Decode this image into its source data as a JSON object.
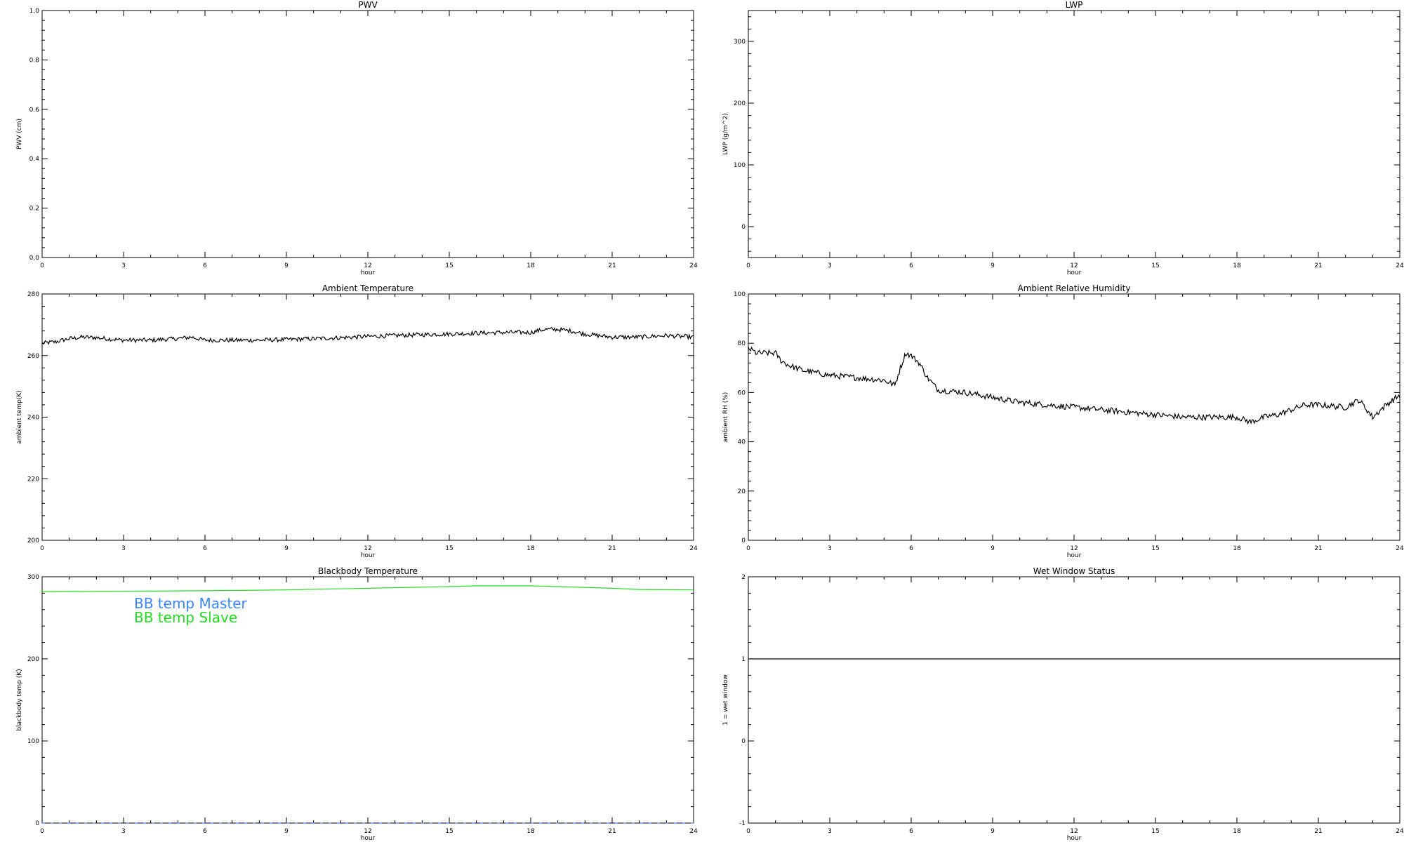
{
  "chart_data": [
    {
      "id": "pwv",
      "type": "line",
      "title": "PWV",
      "xlabel": "hour",
      "ylabel": "PWV (cm)",
      "xlim": [
        0,
        24
      ],
      "ylim": [
        0,
        1.0
      ],
      "xticks": [
        "0",
        "3",
        "6",
        "9",
        "12",
        "15",
        "18",
        "21",
        "24"
      ],
      "xtick_values": [
        0,
        3,
        6,
        9,
        12,
        15,
        18,
        21,
        24
      ],
      "yticks": [
        "0.0",
        "0.2",
        "0.4",
        "0.6",
        "0.8",
        "1.0"
      ],
      "ytick_values": [
        0,
        0.2,
        0.4,
        0.6,
        0.8,
        1.0
      ],
      "series": []
    },
    {
      "id": "lwp",
      "type": "line",
      "title": "LWP",
      "xlabel": "hour",
      "ylabel": "LWP (g/m^2)",
      "xlim": [
        0,
        24
      ],
      "ylim": [
        -50,
        350
      ],
      "xticks": [
        "0",
        "3",
        "6",
        "9",
        "12",
        "15",
        "18",
        "21",
        "24"
      ],
      "xtick_values": [
        0,
        3,
        6,
        9,
        12,
        15,
        18,
        21,
        24
      ],
      "yticks": [
        "0",
        "100",
        "200",
        "300"
      ],
      "ytick_values": [
        0,
        100,
        200,
        300
      ],
      "series": []
    },
    {
      "id": "ambient-temp",
      "type": "line",
      "title": "Ambient Temperature",
      "xlabel": "hour",
      "ylabel": "ambient temp(K)",
      "xlim": [
        0,
        24
      ],
      "ylim": [
        200,
        280
      ],
      "xticks": [
        "0",
        "3",
        "6",
        "9",
        "12",
        "15",
        "18",
        "21",
        "24"
      ],
      "xtick_values": [
        0,
        3,
        6,
        9,
        12,
        15,
        18,
        21,
        24
      ],
      "yticks": [
        "200",
        "220",
        "240",
        "260",
        "280"
      ],
      "ytick_values": [
        200,
        220,
        240,
        260,
        280
      ],
      "series": [
        {
          "color": "#000000",
          "noise": 0.7,
          "x": [
            0,
            0.5,
            1,
            1.5,
            2,
            3,
            4,
            5,
            5.5,
            6,
            7,
            8,
            9,
            10,
            11,
            12,
            13,
            14,
            15,
            16,
            17,
            18,
            18.5,
            19,
            19.5,
            20,
            20.5,
            21,
            22,
            23,
            24
          ],
          "y": [
            264,
            264.5,
            265.5,
            266,
            265.8,
            265,
            265,
            265.5,
            266,
            265,
            265,
            265,
            265.2,
            265.5,
            265.8,
            266.2,
            266.5,
            266.8,
            267,
            267.3,
            267.5,
            267.5,
            268.5,
            268.5,
            268,
            267,
            266.5,
            266,
            266,
            266.5,
            266
          ]
        }
      ]
    },
    {
      "id": "ambient-rh",
      "type": "line",
      "title": "Ambient Relative Humidity",
      "xlabel": "hour",
      "ylabel": "ambient RH (%)",
      "xlim": [
        0,
        24
      ],
      "ylim": [
        0,
        100
      ],
      "xticks": [
        "0",
        "3",
        "6",
        "9",
        "12",
        "15",
        "18",
        "21",
        "24"
      ],
      "xtick_values": [
        0,
        3,
        6,
        9,
        12,
        15,
        18,
        21,
        24
      ],
      "yticks": [
        "0",
        "20",
        "40",
        "60",
        "80",
        "100"
      ],
      "ytick_values": [
        0,
        20,
        40,
        60,
        80,
        100
      ],
      "series": [
        {
          "color": "#000000",
          "noise": 1.2,
          "x": [
            0,
            0.3,
            0.6,
            1,
            1.2,
            1.5,
            2,
            3,
            4,
            5,
            5.4,
            5.6,
            5.8,
            6,
            6.3,
            6.6,
            7,
            8,
            9,
            10,
            11,
            12,
            13,
            14,
            15,
            16,
            17,
            18,
            18.5,
            19,
            19.5,
            20,
            20.5,
            21,
            22,
            22.5,
            23,
            23.5,
            24
          ],
          "y": [
            78,
            76,
            76,
            76,
            73,
            71,
            69,
            67,
            66,
            65,
            63,
            70,
            76,
            75,
            72,
            66,
            61,
            60,
            58,
            56,
            55,
            54,
            53,
            52,
            51,
            50,
            50,
            50,
            48,
            50,
            51,
            53,
            55,
            55,
            54,
            57,
            50,
            55,
            59
          ]
        }
      ]
    },
    {
      "id": "bb-temp",
      "type": "line",
      "title": "Blackbody Temperature",
      "xlabel": "hour",
      "ylabel": "blackbody temp (K)",
      "xlim": [
        0,
        24
      ],
      "ylim": [
        0,
        300
      ],
      "xticks": [
        "0",
        "3",
        "6",
        "9",
        "12",
        "15",
        "18",
        "21",
        "24"
      ],
      "xtick_values": [
        0,
        3,
        6,
        9,
        12,
        15,
        18,
        21,
        24
      ],
      "yticks": [
        "0",
        "100",
        "200",
        "300"
      ],
      "ytick_values": [
        0,
        100,
        200,
        300
      ],
      "legend": [
        "BB temp Master",
        "BB temp Slave"
      ],
      "series": [
        {
          "name": "BB temp Master",
          "color": "#3a86ff",
          "dashed": true,
          "noise": 0,
          "x": [
            0,
            24
          ],
          "y": [
            0,
            0
          ]
        },
        {
          "name": "BB temp Slave",
          "color": "#22dd22",
          "noise": 0,
          "x": [
            0,
            3,
            6,
            9,
            12,
            15,
            16,
            18,
            19,
            21,
            22,
            24
          ],
          "y": [
            282,
            282.5,
            283,
            284,
            286,
            288,
            289,
            289,
            288,
            286,
            284.5,
            284
          ]
        }
      ]
    },
    {
      "id": "wet-window",
      "type": "line",
      "title": "Wet Window Status",
      "xlabel": "hour",
      "ylabel": "1 = wet window",
      "xlim": [
        0,
        24
      ],
      "ylim": [
        -1,
        2
      ],
      "xticks": [
        "0",
        "3",
        "6",
        "9",
        "12",
        "15",
        "18",
        "21",
        "24"
      ],
      "xtick_values": [
        0,
        3,
        6,
        9,
        12,
        15,
        18,
        21,
        24
      ],
      "yticks": [
        "-1",
        "0",
        "1",
        "2"
      ],
      "ytick_values": [
        -1,
        0,
        1,
        2
      ],
      "series": [
        {
          "color": "#000000",
          "noise": 0,
          "x": [
            0,
            24
          ],
          "y": [
            1,
            1
          ]
        }
      ]
    }
  ]
}
